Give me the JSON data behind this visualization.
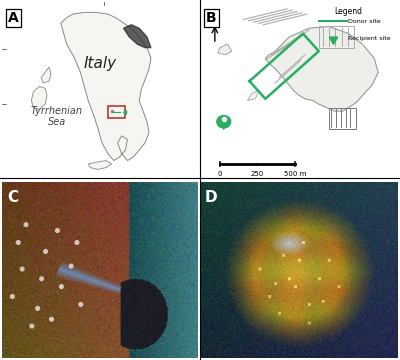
{
  "panel_A_label": "A",
  "panel_B_label": "B",
  "panel_C_label": "C",
  "panel_D_label": "D",
  "italy_label": "Italy",
  "sea_label": "Tyrrhenian\nSea",
  "legend_title": "Legend",
  "legend_donor": "Donor site",
  "legend_recipient": "Recipient site",
  "scale_label": "0    250   500 m",
  "north_label": "N",
  "panel_border_A_color": "#2c2c2c",
  "panel_border_B_color": "#c0392b",
  "map_bg": "#ffffff",
  "land_face": "#f5f5f2",
  "land_edge": "#888888",
  "donor_color": "#27ae60",
  "red_box_color": "#c0392b",
  "fig_bg": "#ffffff",
  "label_fontsize": 9,
  "italy_fontsize": 11,
  "sea_fontsize": 7,
  "lat_fontsize": 4,
  "legend_fontsize": 5.5,
  "scale_fontsize": 5,
  "panel_B_bg": "#f8f8f5",
  "island_face": "#eeeeea",
  "island_edge": "#999999"
}
